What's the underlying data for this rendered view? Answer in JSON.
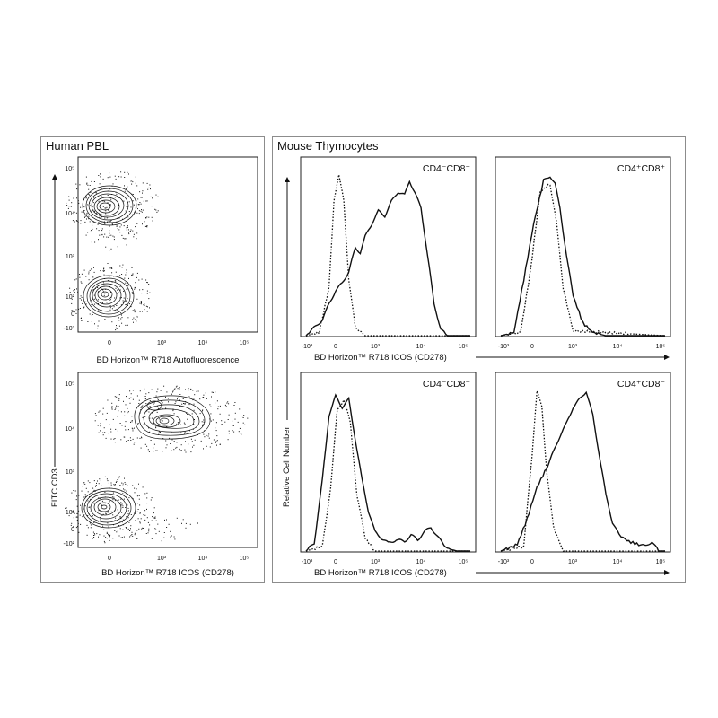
{
  "panels": {
    "left_title": "Human PBL",
    "right_title": "Mouse Thymocytes"
  },
  "chart_data": [
    {
      "type": "contour",
      "id": "pbl-autofluorescence",
      "xlabel": "BD Horizon™ R718  Autofluorescence",
      "ylabel": "FITC  CD3",
      "x_ticks": [
        "0",
        "10³",
        "10⁴",
        "10⁵"
      ],
      "y_ticks": [
        "10⁵",
        "10⁴",
        "10³",
        "10²",
        "0",
        "-10²"
      ],
      "populations": [
        {
          "name": "",
          "x_center": 0,
          "y_center": 12000
        },
        {
          "name": "",
          "x_center": 0,
          "y_center": 150
        }
      ]
    },
    {
      "type": "contour",
      "id": "pbl-icos",
      "xlabel": "BD Horizon™ R718  ICOS (CD278)",
      "ylabel": "FITC  CD3",
      "x_ticks": [
        "0",
        "10³",
        "10⁴",
        "10⁵"
      ],
      "y_ticks": [
        "10⁵",
        "10⁴",
        "10³",
        "10²",
        "0",
        "-10²"
      ],
      "populations": [
        {
          "name": "",
          "x_center": 2000,
          "y_center": 12000
        },
        {
          "name": "",
          "x_center": 0,
          "y_center": 130
        }
      ]
    },
    {
      "type": "histogram",
      "id": "cd4neg-cd8pos",
      "label": "CD4⁻CD8⁺",
      "xlabel": "BD Horizon™ R718  ICOS (CD278)",
      "x_ticks": [
        "-10³",
        "0",
        "10³",
        "10⁴",
        "10⁵"
      ],
      "series": [
        {
          "style": "solid",
          "x": [
            0.0,
            0.05,
            0.1,
            0.14,
            0.18,
            0.22,
            0.26,
            0.3,
            0.33,
            0.36,
            0.4,
            0.44,
            0.48,
            0.52,
            0.56,
            0.6,
            0.63,
            0.66,
            0.7,
            0.74,
            0.78,
            0.82,
            0.86,
            1.0
          ],
          "y": [
            0.0,
            0.05,
            0.1,
            0.2,
            0.28,
            0.33,
            0.4,
            0.55,
            0.52,
            0.62,
            0.7,
            0.78,
            0.75,
            0.84,
            0.9,
            0.88,
            0.97,
            0.9,
            0.8,
            0.5,
            0.2,
            0.04,
            0.0,
            0.0
          ]
        },
        {
          "style": "dotted",
          "x": [
            0.0,
            0.08,
            0.14,
            0.17,
            0.2,
            0.23,
            0.26,
            0.3,
            0.36,
            1.0
          ],
          "y": [
            0.0,
            0.02,
            0.3,
            0.85,
            1.0,
            0.85,
            0.35,
            0.05,
            0.0,
            0.0
          ]
        }
      ]
    },
    {
      "type": "histogram",
      "id": "cd4pos-cd8pos",
      "label": "CD4⁺CD8⁺",
      "xlabel": "",
      "x_ticks": [
        "-10³",
        "0",
        "10³",
        "10⁴",
        "10⁵"
      ],
      "series": [
        {
          "style": "solid",
          "x": [
            0.0,
            0.08,
            0.14,
            0.2,
            0.26,
            0.3,
            0.33,
            0.36,
            0.4,
            0.44,
            0.5,
            0.56,
            0.64,
            1.0
          ],
          "y": [
            0.0,
            0.02,
            0.35,
            0.7,
            0.97,
            1.0,
            0.95,
            0.8,
            0.5,
            0.25,
            0.08,
            0.02,
            0.0,
            0.0
          ]
        },
        {
          "style": "dotted",
          "x": [
            0.0,
            0.12,
            0.18,
            0.24,
            0.3,
            0.34,
            0.38,
            0.44,
            1.0
          ],
          "y": [
            0.0,
            0.02,
            0.4,
            0.9,
            0.95,
            0.7,
            0.3,
            0.03,
            0.0
          ]
        }
      ]
    },
    {
      "type": "histogram",
      "id": "cd4neg-cd8neg",
      "label": "CD4⁻CD8⁻",
      "xlabel": "BD Horizon™ R718  ICOS (CD278)",
      "x_ticks": [
        "-10³",
        "0",
        "10³",
        "10⁴",
        "10⁵"
      ],
      "series": [
        {
          "style": "solid",
          "x": [
            0.0,
            0.05,
            0.1,
            0.14,
            0.18,
            0.22,
            0.26,
            0.3,
            0.34,
            0.38,
            0.42,
            0.46,
            0.5,
            0.55,
            0.6,
            0.64,
            0.68,
            0.72,
            0.76,
            0.8,
            0.84,
            0.88,
            0.92,
            1.0
          ],
          "y": [
            0.0,
            0.05,
            0.45,
            0.85,
            0.97,
            0.9,
            0.95,
            0.7,
            0.45,
            0.25,
            0.12,
            0.08,
            0.05,
            0.07,
            0.06,
            0.1,
            0.07,
            0.12,
            0.15,
            0.09,
            0.04,
            0.01,
            0.0,
            0.0
          ]
        },
        {
          "style": "dotted",
          "x": [
            0.0,
            0.1,
            0.15,
            0.19,
            0.23,
            0.27,
            0.31,
            0.36,
            0.42,
            1.0
          ],
          "y": [
            0.0,
            0.03,
            0.4,
            0.88,
            0.95,
            0.8,
            0.35,
            0.08,
            0.0,
            0.0
          ]
        }
      ]
    },
    {
      "type": "histogram",
      "id": "cd4pos-cd8neg",
      "label": "CD4⁺CD8⁻",
      "xlabel": "",
      "x_ticks": [
        "-10³",
        "0",
        "10³",
        "10⁴",
        "10⁵"
      ],
      "series": [
        {
          "style": "solid",
          "x": [
            0.0,
            0.1,
            0.16,
            0.22,
            0.28,
            0.32,
            0.36,
            0.4,
            0.44,
            0.48,
            0.52,
            0.56,
            0.6,
            0.64,
            0.68,
            0.72,
            0.78,
            0.84,
            0.88,
            0.92,
            0.96,
            1.0
          ],
          "y": [
            0.0,
            0.04,
            0.2,
            0.4,
            0.52,
            0.62,
            0.72,
            0.8,
            0.9,
            0.95,
            1.0,
            0.85,
            0.6,
            0.35,
            0.18,
            0.1,
            0.06,
            0.04,
            0.03,
            0.06,
            0.0,
            0.0
          ]
        },
        {
          "style": "dotted",
          "x": [
            0.0,
            0.14,
            0.19,
            0.22,
            0.25,
            0.28,
            0.32,
            0.38,
            1.0
          ],
          "y": [
            0.0,
            0.03,
            0.6,
            1.0,
            0.9,
            0.5,
            0.15,
            0.0,
            0.0
          ]
        }
      ]
    }
  ],
  "relative_cell_number_label": "Relative Cell Number"
}
